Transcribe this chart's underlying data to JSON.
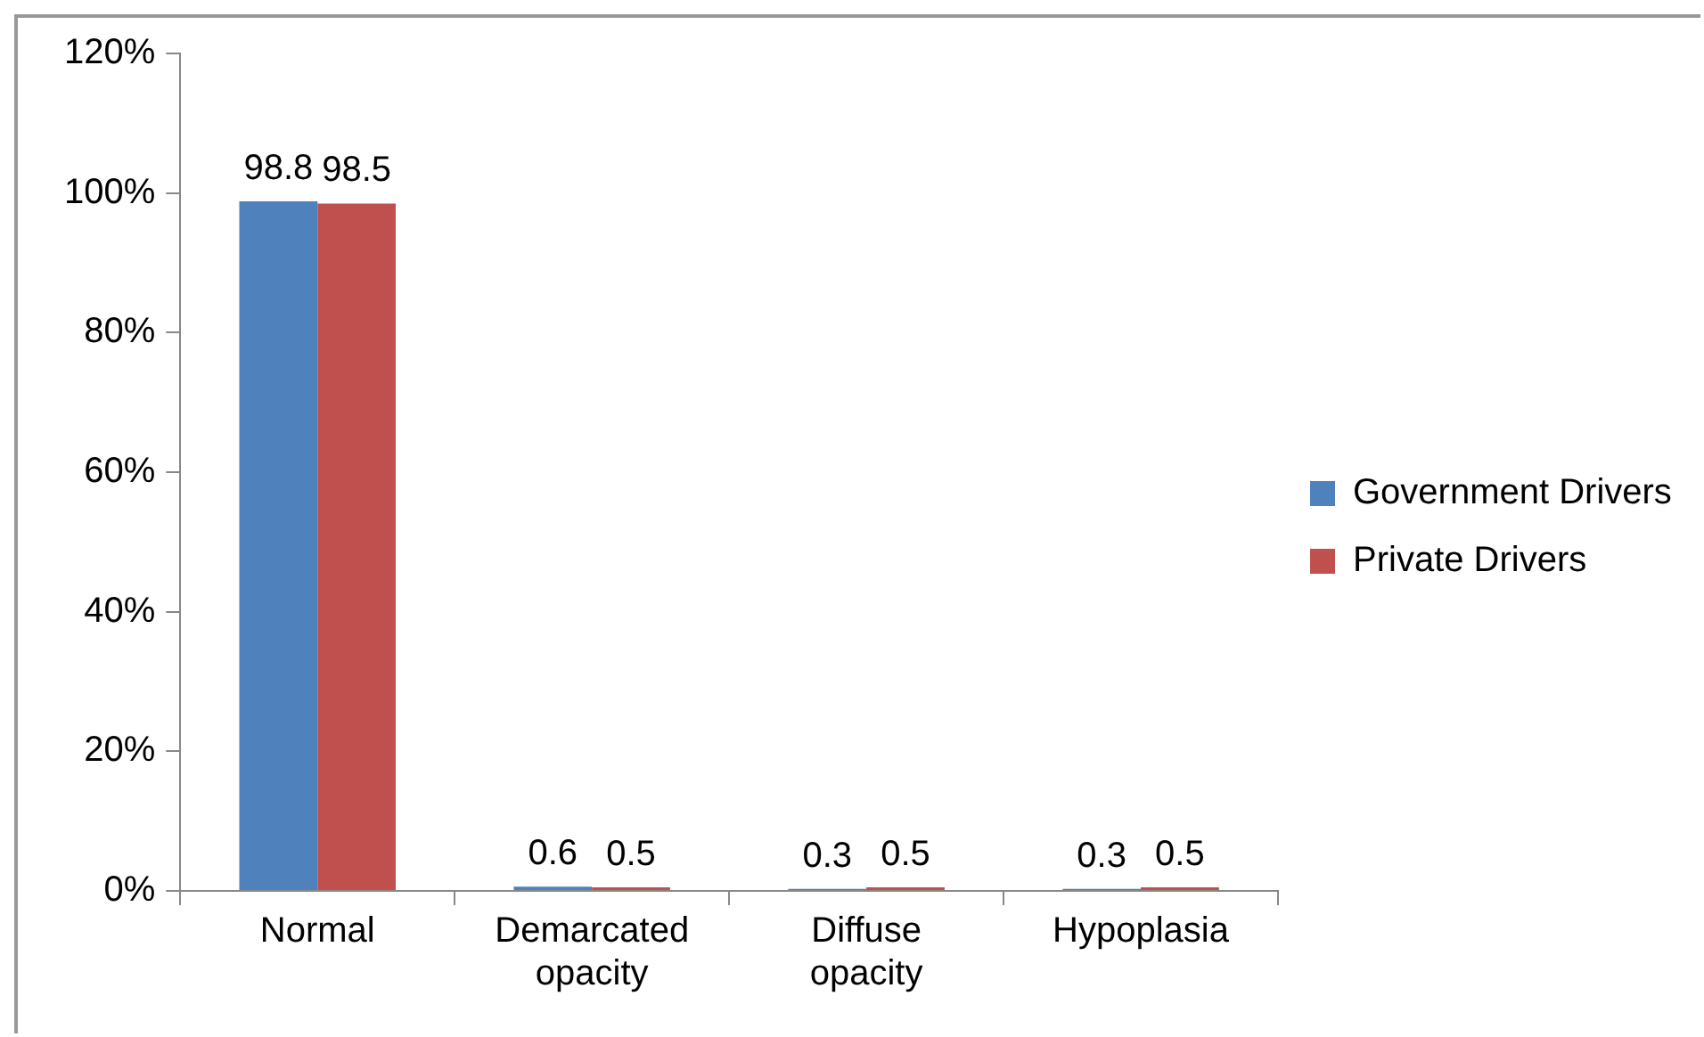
{
  "chart_data": {
    "type": "bar",
    "categories": [
      "Normal",
      "Demarcated opacity",
      "Diffuse opacity",
      "Hypoplasia"
    ],
    "series": [
      {
        "name": "Government Drivers",
        "color": "#4f81bd",
        "values": [
          98.8,
          0.6,
          0.3,
          0.3
        ]
      },
      {
        "name": "Private Drivers",
        "color": "#c0504d",
        "values": [
          98.5,
          0.5,
          0.5,
          0.5
        ]
      }
    ],
    "ylim": [
      0,
      120
    ],
    "yticks": [
      {
        "value": 0,
        "label": "0%"
      },
      {
        "value": 20,
        "label": "20%"
      },
      {
        "value": 40,
        "label": "40%"
      },
      {
        "value": 60,
        "label": "60%"
      },
      {
        "value": 80,
        "label": "80%"
      },
      {
        "value": 100,
        "label": "100%"
      },
      {
        "value": 120,
        "label": "120%"
      }
    ],
    "data_labels": true,
    "grid": false,
    "legend": "right"
  }
}
